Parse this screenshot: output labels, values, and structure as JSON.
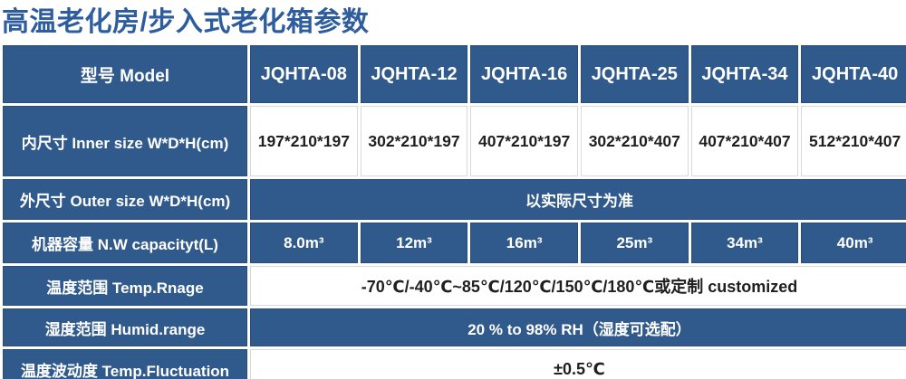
{
  "page_title": "高温老化房/步入式老化箱参数",
  "colors": {
    "title_blue": "#2e5d9e",
    "cell_blue": "#315a8c",
    "cell_border_blue": "#2a4c78",
    "white_cell_border": "#d9d9d9",
    "value_text": "#1f1f1f",
    "cell_text_white": "#ffffff"
  },
  "table": {
    "header": {
      "label": "型号 Model",
      "models": [
        "JQHTA-08",
        "JQHTA-12",
        "JQHTA-16",
        "JQHTA-25",
        "JQHTA-34",
        "JQHTA-40"
      ]
    },
    "rows": {
      "inner_size": {
        "label": "内尺寸 Inner size W*D*H(cm)",
        "values": [
          "197*210*197",
          "302*210*197",
          "407*210*197",
          "302*210*407",
          "407*210*407",
          "512*210*407"
        ]
      },
      "outer_size": {
        "label": "外尺寸 Outer size W*D*H(cm)",
        "value": "以实际尺寸为准"
      },
      "capacity": {
        "label": "机器容量 N.W capacityt(L)",
        "values": [
          "8.0m³",
          "12m³",
          "16m³",
          "25m³",
          "34m³",
          "40m³"
        ]
      },
      "temp_range": {
        "label": "温度范围 Temp.Rnage",
        "value": "-70℃/-40℃~85℃/120℃/150℃/180℃或定制 customized"
      },
      "humidity_range": {
        "label": "湿度范围 Humid.range",
        "value": "20 % to 98% RH（湿度可选配）"
      },
      "temp_fluctuation": {
        "label": "温度波动度 Temp.Fluctuation",
        "value": "±0.5℃"
      }
    }
  }
}
